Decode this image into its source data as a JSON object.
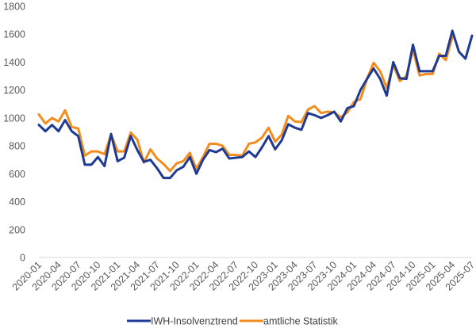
{
  "chart_data": {
    "type": "line",
    "title": "",
    "xlabel": "",
    "ylabel": "",
    "ylim": [
      0,
      1800
    ],
    "yticks": [
      0,
      200,
      400,
      600,
      800,
      1000,
      1200,
      1400,
      1600,
      1800
    ],
    "grid": false,
    "legend_position": "bottom",
    "x": [
      "2020-01",
      "2020-02",
      "2020-03",
      "2020-04",
      "2020-05",
      "2020-06",
      "2020-07",
      "2020-08",
      "2020-09",
      "2020-10",
      "2020-11",
      "2020-12",
      "2021-01",
      "2021-02",
      "2021-03",
      "2021-04",
      "2021-05",
      "2021-06",
      "2021-07",
      "2021-08",
      "2021-09",
      "2021-10",
      "2021-11",
      "2021-12",
      "2022-01",
      "2022-02",
      "2022-03",
      "2022-04",
      "2022-05",
      "2022-06",
      "2022-07",
      "2022-08",
      "2022-09",
      "2022-10",
      "2022-11",
      "2022-12",
      "2023-01",
      "2023-02",
      "2023-03",
      "2023-04",
      "2023-05",
      "2023-06",
      "2023-07",
      "2023-08",
      "2023-09",
      "2023-10",
      "2023-11",
      "2023-12",
      "2024-01",
      "2024-02",
      "2024-03",
      "2024-04",
      "2024-05",
      "2024-06",
      "2024-07",
      "2024-08",
      "2024-09",
      "2024-10",
      "2024-11",
      "2024-12",
      "2025-01",
      "2025-02",
      "2025-03",
      "2025-04",
      "2025-05",
      "2025-06",
      "2025-07"
    ],
    "xtick_labels": [
      "2020-01",
      "2020-04",
      "2020-07",
      "2020-10",
      "2021-01",
      "2021-04",
      "2021-07",
      "2021-10",
      "2022-01",
      "2022-04",
      "2022-07",
      "2022-10",
      "2023-01",
      "2023-04",
      "2023-07",
      "2023-10",
      "2024-01",
      "2024-04",
      "2024-07",
      "2024-10",
      "2025-01",
      "2025-04",
      "2025-07"
    ],
    "series": [
      {
        "name": "IWH-Insolvenztrend",
        "color": "#1f3a93",
        "values": [
          950,
          905,
          950,
          905,
          985,
          905,
          870,
          665,
          665,
          720,
          655,
          885,
          690,
          715,
          870,
          770,
          685,
          700,
          640,
          570,
          570,
          625,
          650,
          720,
          600,
          700,
          770,
          755,
          780,
          710,
          715,
          720,
          760,
          720,
          790,
          870,
          775,
          840,
          955,
          930,
          915,
          1035,
          1020,
          1000,
          1020,
          1045,
          975,
          1070,
          1085,
          1200,
          1280,
          1355,
          1280,
          1160,
          1400,
          1285,
          1280,
          1525,
          1335,
          1335,
          1335,
          1445,
          1445,
          1625,
          1475,
          1425,
          1590
        ]
      },
      {
        "name": "amtliche Statistik",
        "color": "#f28c1d",
        "values": [
          1025,
          960,
          1000,
          975,
          1055,
          935,
          925,
          730,
          760,
          760,
          740,
          880,
          760,
          760,
          895,
          845,
          680,
          775,
          710,
          670,
          620,
          675,
          690,
          750,
          635,
          720,
          815,
          815,
          800,
          735,
          735,
          730,
          815,
          825,
          860,
          930,
          830,
          880,
          1015,
          975,
          970,
          1060,
          1085,
          1035,
          1045,
          1040,
          1005,
          1040,
          1115,
          1135,
          1280,
          1395,
          1335,
          1215,
          1380,
          1265,
          1300,
          1490,
          1305,
          1315,
          1315,
          1460,
          1415,
          1580,
          null,
          null,
          null
        ]
      }
    ]
  }
}
